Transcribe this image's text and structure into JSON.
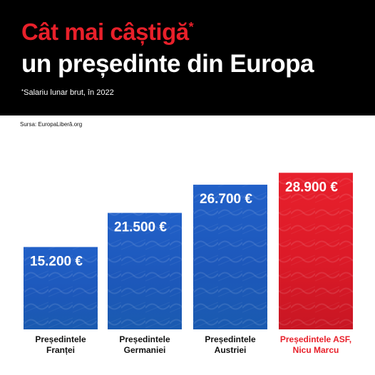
{
  "header": {
    "title_line1": "Cât mai câștigă",
    "title_asterisk": "*",
    "title_line2": "un președinte din Europa",
    "note_asterisk": "*",
    "note": "Salariu lunar brut, în 2022",
    "source": "Sursa: EuropaLiberă.org"
  },
  "colors": {
    "accent": "#e8202a",
    "bar_blue": "#1f5fc8",
    "bar_red": "#e41b2a",
    "header_bg": "#000000"
  },
  "chart_data": {
    "type": "bar",
    "categories": [
      [
        "Președintele",
        "Franței"
      ],
      [
        "Președintele",
        "Germaniei"
      ],
      [
        "Președintele",
        "Austriei"
      ],
      [
        "Președintele ASF,",
        "Nicu Marcu"
      ]
    ],
    "values": [
      15200,
      21500,
      26700,
      28900
    ],
    "value_labels": [
      "15.200 €",
      "21.500 €",
      "26.700 €",
      "28.900 €"
    ],
    "bar_colors": [
      "#1f5fc8",
      "#1f5fc8",
      "#1f5fc8",
      "#e41b2a"
    ],
    "highlight_index": 3,
    "unit": "€",
    "ylim": [
      0,
      30000
    ]
  }
}
